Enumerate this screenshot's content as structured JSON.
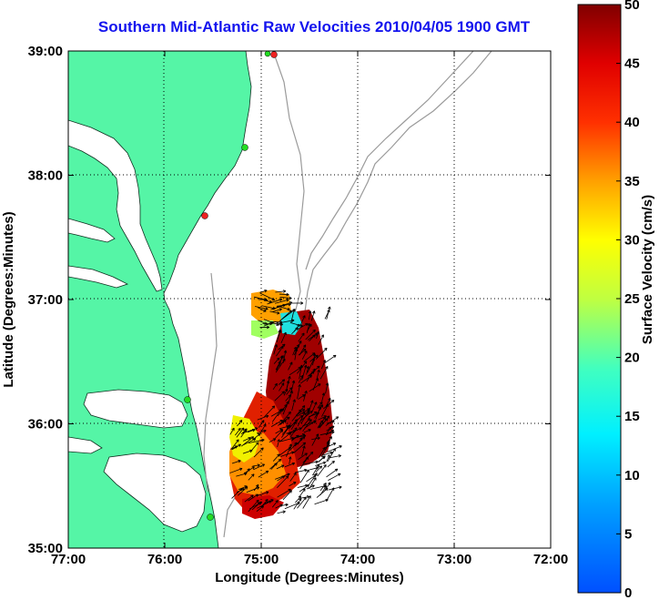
{
  "title": "Southern Mid-Atlantic Raw Velocities 2010/04/05 1900 GMT",
  "x_axis": {
    "label": "Longitude (Degrees:Minutes)",
    "ticks": [
      "77:00",
      "76:00",
      "75:00",
      "74:00",
      "73:00",
      "72:00"
    ]
  },
  "y_axis": {
    "label": "Latitude (Degrees:Minutes)",
    "ticks": [
      "39:00",
      "38:00",
      "37:00",
      "36:00",
      "35:00"
    ]
  },
  "colorbar": {
    "label": "Surface Velocity (cm/s)",
    "ticks": [
      "50",
      "45",
      "40",
      "35",
      "30",
      "25",
      "20",
      "15",
      "10",
      "5",
      "0"
    ],
    "min": 0,
    "max": 50
  },
  "colors": {
    "land": "#55f5a6",
    "title": "#1414ee",
    "bathymetry": "#9a9a9a",
    "station_active": "#22dd22",
    "station_alert": "#ee2222"
  }
}
